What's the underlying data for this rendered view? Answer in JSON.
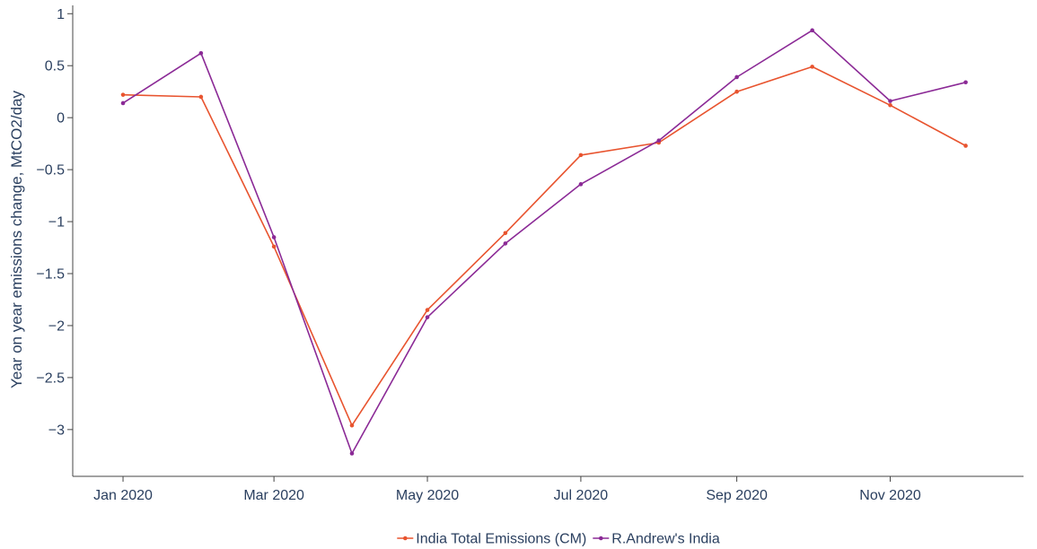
{
  "chart_data": {
    "type": "line",
    "title": "",
    "xlabel": "",
    "ylabel": "Year on year emissions change, MtCO2/day",
    "x": [
      "2020-01-01",
      "2020-02-01",
      "2020-03-01",
      "2020-04-01",
      "2020-05-01",
      "2020-06-01",
      "2020-07-01",
      "2020-08-01",
      "2020-09-01",
      "2020-10-01",
      "2020-11-01",
      "2020-12-01"
    ],
    "x_ticks": [
      "2020-01-01",
      "2020-03-01",
      "2020-05-01",
      "2020-07-01",
      "2020-09-01",
      "2020-11-01"
    ],
    "x_tick_labels": [
      "Jan 2020",
      "Mar 2020",
      "May 2020",
      "Jul 2020",
      "Sep 2020",
      "Nov 2020"
    ],
    "xlim": [
      "2019-12-12",
      "2020-12-24"
    ],
    "ylim": [
      -3.45,
      1.08
    ],
    "y_ticks": [
      1,
      0.5,
      0,
      -0.5,
      -1,
      -1.5,
      -2,
      -2.5,
      -3
    ],
    "y_tick_labels": [
      "1",
      "0.5",
      "0",
      "−0.5",
      "−1",
      "−1.5",
      "−2",
      "−2.5",
      "−3"
    ],
    "grid": false,
    "legend_position": "bottom",
    "series": [
      {
        "name": "India Total Emissions (CM)",
        "color": "#e8542f",
        "values": [
          0.22,
          0.2,
          -1.24,
          -2.96,
          -1.85,
          -1.11,
          -0.36,
          -0.24,
          0.25,
          0.49,
          0.12,
          -0.27
        ]
      },
      {
        "name": "R.Andrew's India",
        "color": "#8b2a96",
        "values": [
          0.14,
          0.62,
          -1.15,
          -3.23,
          -1.92,
          -1.21,
          -0.64,
          -0.22,
          0.39,
          0.84,
          0.16,
          0.34
        ]
      }
    ]
  }
}
